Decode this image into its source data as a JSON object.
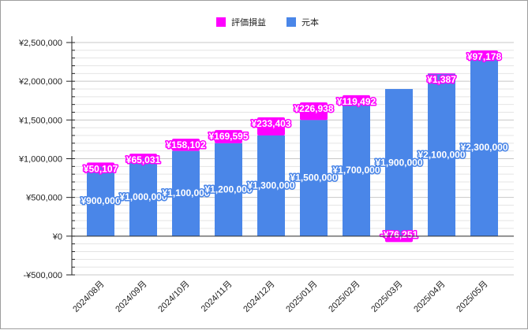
{
  "chart_data": {
    "type": "bar",
    "stacked": true,
    "title": "",
    "xlabel": "",
    "ylabel": "",
    "categories": [
      "2024/08月",
      "2024/09月",
      "2024/10月",
      "2024/11月",
      "2024/12月",
      "2025/01月",
      "2025/02月",
      "2025/03月",
      "2025/04月",
      "2025/05月"
    ],
    "series": [
      {
        "name": "元本",
        "color": "#4a86e8",
        "values": [
          900000,
          1000000,
          1100000,
          1200000,
          1300000,
          1500000,
          1700000,
          1900000,
          2100000,
          2300000
        ],
        "labels": [
          "¥900,000",
          "¥1,000,000",
          "¥1,100,000",
          "¥1,200,000",
          "¥1,300,000",
          "¥1,500,000",
          "¥1,700,000",
          "¥1,900,000",
          "¥2,100,000",
          "¥2,300,000"
        ]
      },
      {
        "name": "評価損益",
        "color": "#ff00ff",
        "values": [
          50107,
          65031,
          158102,
          169595,
          233403,
          226938,
          119492,
          -76251,
          1387,
          97178
        ],
        "labels": [
          "¥50,107",
          "¥65,031",
          "¥158,102",
          "¥169,595",
          "¥233,403",
          "¥226,938",
          "¥119,492",
          "-¥76,251",
          "¥1,387",
          "¥97,178"
        ]
      }
    ],
    "legend": [
      "評価損益",
      "元本"
    ],
    "legend_position": "top",
    "ylim": [
      -500000,
      2500000
    ],
    "yticks": [
      -500000,
      0,
      500000,
      1000000,
      1500000,
      2000000,
      2500000
    ],
    "ytick_labels": [
      "-¥500,000",
      "¥0",
      "¥500,000",
      "¥1,000,000",
      "¥1,500,000",
      "¥2,000,000",
      "¥2,500,000"
    ],
    "minor_step": 100000,
    "grid": true
  }
}
